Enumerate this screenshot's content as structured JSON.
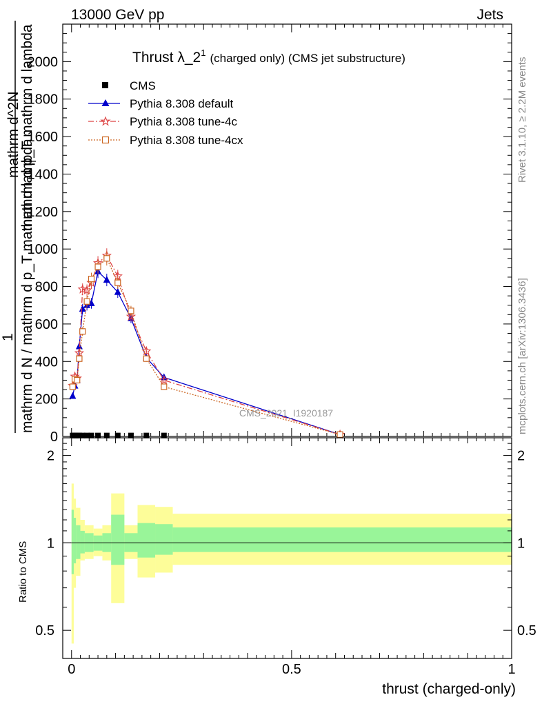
{
  "header": {
    "energy": "13000 GeV pp",
    "category": "Jets"
  },
  "side_labels": {
    "rivet": "Rivet 3.1.10, ≥ 2.2M events",
    "mcplots": "mcplots.cern.ch [arXiv:1306.3436]"
  },
  "watermark": "CMS_2021_I1920187",
  "chart_data": [
    {
      "type": "line",
      "title_main": "Thrust λ_2",
      "title_sup": "1",
      "title_rest": "(charged only) (CMS jet substructure)",
      "ylabel_numerator": "1",
      "ylabel_denominator": "mathrm d N / mathrm d p_T mathrm d lambda",
      "ylabel_small": "mathrm d^2N",
      "ylabel_sub": "T",
      "ylabel_tail": "mathrm d p_T mathrm d lambda",
      "xlim": [
        -0.02,
        1.0
      ],
      "ylim": [
        0,
        2200
      ],
      "yticks": [
        0,
        200,
        400,
        600,
        800,
        1000,
        1200,
        1400,
        1600,
        1800,
        2000
      ],
      "ytick_labels": [
        "0",
        "200",
        "400",
        "600",
        "800",
        "1000",
        "1200",
        "1400",
        "1600",
        "1800",
        "2000"
      ],
      "legend_position": "top-left",
      "series": [
        {
          "name": "CMS",
          "color": "#000000",
          "marker": "square",
          "x": [
            0.0025,
            0.0075,
            0.0125,
            0.0175,
            0.025,
            0.035,
            0.045,
            0.06,
            0.08,
            0.105,
            0.135,
            0.17,
            0.21
          ],
          "y": [
            5,
            5,
            5,
            5,
            5,
            5,
            5,
            5,
            5,
            5,
            5,
            5,
            5
          ]
        },
        {
          "name": "Pythia 8.308 default",
          "color": "#0000cc",
          "marker": "triangle",
          "dash": "",
          "x": [
            0.0025,
            0.0075,
            0.0125,
            0.0175,
            0.025,
            0.035,
            0.045,
            0.06,
            0.08,
            0.105,
            0.135,
            0.17,
            0.21,
            0.61
          ],
          "y": [
            215,
            270,
            300,
            480,
            680,
            700,
            710,
            880,
            835,
            770,
            630,
            420,
            315,
            10
          ]
        },
        {
          "name": "Pythia 8.308 tune-4c",
          "color": "#dd4444",
          "marker": "star",
          "dash": "8,3,2,3",
          "x": [
            0.0025,
            0.0075,
            0.0125,
            0.0175,
            0.025,
            0.035,
            0.045,
            0.06,
            0.08,
            0.105,
            0.135,
            0.17,
            0.21,
            0.61
          ],
          "y": [
            270,
            320,
            310,
            445,
            785,
            780,
            820,
            925,
            965,
            855,
            640,
            455,
            300,
            10
          ]
        },
        {
          "name": "Pythia 8.308 tune-4cx",
          "color": "#cc6622",
          "marker": "open-square",
          "dash": "2,2",
          "x": [
            0.0025,
            0.0075,
            0.0125,
            0.0175,
            0.025,
            0.035,
            0.045,
            0.06,
            0.08,
            0.105,
            0.135,
            0.17,
            0.21,
            0.61
          ],
          "y": [
            265,
            305,
            300,
            415,
            560,
            720,
            840,
            905,
            950,
            820,
            670,
            415,
            265,
            10
          ]
        }
      ]
    },
    {
      "type": "area",
      "ylabel": "Ratio to CMS",
      "xlabel": "thrust (charged-only)",
      "xlim": [
        -0.02,
        1.0
      ],
      "ylim": [
        0.4,
        2.3
      ],
      "log_y": true,
      "yticks": [
        0.5,
        1,
        2
      ],
      "ytick_labels": [
        "0.5",
        "1",
        "2"
      ],
      "xticks": [
        0,
        0.5,
        1
      ],
      "xtick_labels": [
        "0",
        "0.5",
        "1"
      ],
      "reference_line": 1,
      "bins": [
        {
          "x0": 0.0,
          "x1": 0.005,
          "inner": [
            0.78,
            1.3
          ],
          "outer": [
            0.45,
            1.6
          ]
        },
        {
          "x0": 0.005,
          "x1": 0.01,
          "inner": [
            0.85,
            1.22
          ],
          "outer": [
            0.7,
            1.42
          ]
        },
        {
          "x0": 0.01,
          "x1": 0.02,
          "inner": [
            0.88,
            1.15
          ],
          "outer": [
            0.77,
            1.32
          ]
        },
        {
          "x0": 0.02,
          "x1": 0.03,
          "inner": [
            0.92,
            1.1
          ],
          "outer": [
            0.87,
            1.2
          ]
        },
        {
          "x0": 0.03,
          "x1": 0.05,
          "inner": [
            0.93,
            1.08
          ],
          "outer": [
            0.88,
            1.15
          ]
        },
        {
          "x0": 0.05,
          "x1": 0.07,
          "inner": [
            0.94,
            1.06
          ],
          "outer": [
            0.9,
            1.12
          ]
        },
        {
          "x0": 0.07,
          "x1": 0.09,
          "inner": [
            0.93,
            1.08
          ],
          "outer": [
            0.87,
            1.15
          ]
        },
        {
          "x0": 0.09,
          "x1": 0.12,
          "inner": [
            0.84,
            1.25
          ],
          "outer": [
            0.62,
            1.48
          ]
        },
        {
          "x0": 0.12,
          "x1": 0.15,
          "inner": [
            0.93,
            1.08
          ],
          "outer": [
            0.88,
            1.15
          ]
        },
        {
          "x0": 0.15,
          "x1": 0.19,
          "inner": [
            0.89,
            1.17
          ],
          "outer": [
            0.76,
            1.35
          ]
        },
        {
          "x0": 0.19,
          "x1": 0.23,
          "inner": [
            0.91,
            1.16
          ],
          "outer": [
            0.79,
            1.33
          ]
        },
        {
          "x0": 0.23,
          "x1": 1.0,
          "inner": [
            0.93,
            1.13
          ],
          "outer": [
            0.84,
            1.26
          ]
        }
      ],
      "colors": {
        "inner": "#99f599",
        "outer": "#fdfd99"
      }
    }
  ]
}
